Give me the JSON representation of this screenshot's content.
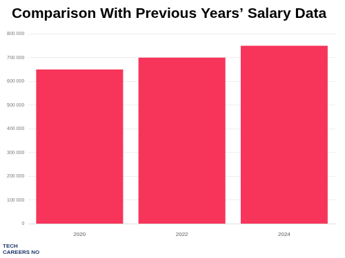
{
  "chart_data": {
    "type": "bar",
    "title": "Comparison With Previous Years’ Salary Data",
    "categories": [
      "2020",
      "2022",
      "2024"
    ],
    "values": [
      650000,
      700000,
      750000
    ],
    "color": "#f7345a",
    "ylim": [
      0,
      800000
    ],
    "yticks": [
      {
        "value": 0,
        "label": "0"
      },
      {
        "value": 100000,
        "label": "100 000"
      },
      {
        "value": 200000,
        "label": "200 000"
      },
      {
        "value": 300000,
        "label": "300 000"
      },
      {
        "value": 400000,
        "label": "400 000"
      },
      {
        "value": 500000,
        "label": "500 000"
      },
      {
        "value": 600000,
        "label": "600 000"
      },
      {
        "value": 700000,
        "label": "700 000"
      },
      {
        "value": 800000,
        "label": "800 000"
      }
    ],
    "grid": true,
    "logo": "TECH CAREERS NO"
  }
}
